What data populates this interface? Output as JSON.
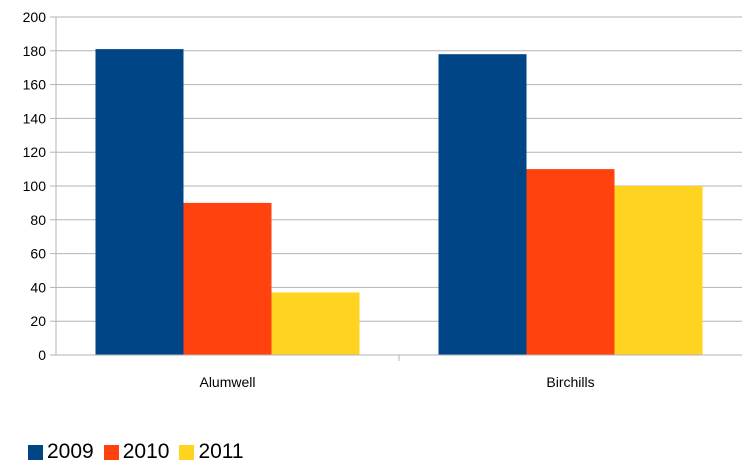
{
  "chart_data": {
    "type": "bar",
    "categories": [
      "Alumwell",
      "Birchills"
    ],
    "series": [
      {
        "name": "2009",
        "values": [
          181,
          178
        ],
        "color": "#004586"
      },
      {
        "name": "2010",
        "values": [
          90,
          110
        ],
        "color": "#ff420e"
      },
      {
        "name": "2011",
        "values": [
          37,
          100
        ],
        "color": "#ffd320"
      }
    ],
    "ylim": [
      0,
      200
    ],
    "yticks": [
      0,
      20,
      40,
      60,
      80,
      100,
      120,
      140,
      160,
      180,
      200
    ],
    "grid": true,
    "legend_position": "bottom-left",
    "title": "",
    "xlabel": "",
    "ylabel": ""
  }
}
